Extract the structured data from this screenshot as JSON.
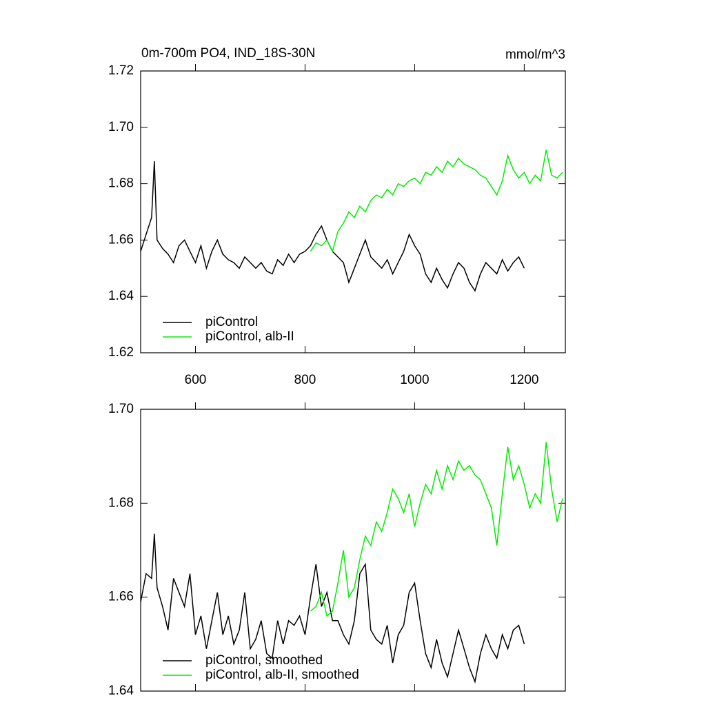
{
  "chart_data": [
    {
      "type": "line",
      "title": "0m-700m PO4, IND_18S-30N",
      "units": "mmol/m^3",
      "xlim": [
        500,
        1275
      ],
      "xticks": [
        600,
        800,
        1000,
        1200
      ],
      "xtick_labels": true,
      "ylim": [
        1.62,
        1.72
      ],
      "yticks": [
        1.62,
        1.64,
        1.66,
        1.68,
        {
          "value": 1.7,
          "label": "1.70"
        },
        1.72
      ],
      "legend": "lower left",
      "series": [
        {
          "name": "piControl",
          "color": "#000000",
          "x": [
            500,
            510,
            520,
            525,
            530,
            540,
            550,
            560,
            570,
            580,
            590,
            600,
            610,
            620,
            630,
            640,
            650,
            660,
            670,
            680,
            690,
            700,
            710,
            720,
            730,
            740,
            750,
            760,
            770,
            780,
            790,
            800,
            810,
            820,
            830,
            840,
            850,
            860,
            870,
            880,
            890,
            900,
            910,
            920,
            930,
            940,
            950,
            960,
            970,
            980,
            990,
            1000,
            1010,
            1020,
            1030,
            1040,
            1050,
            1060,
            1070,
            1080,
            1090,
            1100,
            1110,
            1120,
            1130,
            1140,
            1150,
            1160,
            1170,
            1180,
            1190,
            1200
          ],
          "values": [
            1.656,
            1.662,
            1.668,
            1.688,
            1.66,
            1.657,
            1.655,
            1.652,
            1.658,
            1.66,
            1.656,
            1.652,
            1.658,
            1.65,
            1.656,
            1.66,
            1.655,
            1.653,
            1.652,
            1.65,
            1.654,
            1.652,
            1.65,
            1.652,
            1.649,
            1.648,
            1.653,
            1.651,
            1.655,
            1.652,
            1.655,
            1.656,
            1.658,
            1.662,
            1.665,
            1.66,
            1.656,
            1.654,
            1.652,
            1.645,
            1.65,
            1.655,
            1.66,
            1.654,
            1.652,
            1.65,
            1.653,
            1.648,
            1.652,
            1.656,
            1.662,
            1.658,
            1.655,
            1.648,
            1.645,
            1.65,
            1.646,
            1.643,
            1.648,
            1.652,
            1.65,
            1.645,
            1.642,
            1.648,
            1.652,
            1.65,
            1.648,
            1.653,
            1.649,
            1.652,
            1.654,
            1.65
          ]
        },
        {
          "name": "piControl, alb-II",
          "color": "#00ee00",
          "x": [
            810,
            820,
            830,
            840,
            850,
            860,
            870,
            880,
            890,
            900,
            910,
            920,
            930,
            940,
            950,
            960,
            970,
            980,
            990,
            1000,
            1010,
            1020,
            1030,
            1040,
            1050,
            1060,
            1070,
            1080,
            1090,
            1100,
            1110,
            1120,
            1130,
            1140,
            1150,
            1160,
            1170,
            1180,
            1190,
            1200,
            1210,
            1220,
            1230,
            1240,
            1250,
            1260,
            1270
          ],
          "values": [
            1.656,
            1.659,
            1.658,
            1.66,
            1.656,
            1.663,
            1.666,
            1.67,
            1.668,
            1.672,
            1.67,
            1.674,
            1.676,
            1.675,
            1.678,
            1.676,
            1.68,
            1.679,
            1.681,
            1.682,
            1.68,
            1.684,
            1.683,
            1.686,
            1.684,
            1.688,
            1.686,
            1.689,
            1.687,
            1.686,
            1.685,
            1.683,
            1.682,
            1.679,
            1.676,
            1.681,
            1.69,
            1.685,
            1.682,
            1.684,
            1.68,
            1.683,
            1.681,
            1.692,
            1.683,
            1.682,
            1.684
          ]
        }
      ]
    },
    {
      "type": "line",
      "xlim": [
        500,
        1275
      ],
      "xticks": [
        600,
        800,
        1000,
        1200
      ],
      "xtick_labels": false,
      "ylim": [
        1.64,
        1.7
      ],
      "yticks": [
        1.64,
        1.66,
        1.68,
        {
          "value": 1.7,
          "label": "1.70"
        }
      ],
      "legend": "lower left",
      "series": [
        {
          "name": "piControl, smoothed",
          "color": "#000000",
          "x": [
            500,
            510,
            520,
            525,
            530,
            540,
            550,
            560,
            570,
            580,
            590,
            600,
            610,
            620,
            630,
            640,
            650,
            660,
            670,
            680,
            690,
            700,
            710,
            720,
            730,
            740,
            750,
            760,
            770,
            780,
            790,
            800,
            810,
            820,
            830,
            840,
            850,
            860,
            870,
            880,
            890,
            900,
            910,
            920,
            930,
            940,
            950,
            960,
            970,
            980,
            990,
            1000,
            1010,
            1020,
            1030,
            1040,
            1050,
            1060,
            1070,
            1080,
            1090,
            1100,
            1110,
            1120,
            1130,
            1140,
            1150,
            1160,
            1170,
            1180,
            1190,
            1200
          ],
          "values": [
            1.659,
            1.665,
            1.664,
            1.6735,
            1.662,
            1.658,
            1.653,
            1.664,
            1.661,
            1.658,
            1.665,
            1.652,
            1.656,
            1.649,
            1.655,
            1.661,
            1.652,
            1.656,
            1.65,
            1.653,
            1.661,
            1.649,
            1.651,
            1.655,
            1.648,
            1.647,
            1.655,
            1.65,
            1.655,
            1.654,
            1.656,
            1.652,
            1.66,
            1.667,
            1.658,
            1.661,
            1.655,
            1.655,
            1.652,
            1.65,
            1.655,
            1.665,
            1.667,
            1.653,
            1.651,
            1.65,
            1.654,
            1.646,
            1.652,
            1.654,
            1.661,
            1.663,
            1.655,
            1.648,
            1.645,
            1.651,
            1.646,
            1.643,
            1.648,
            1.653,
            1.649,
            1.645,
            1.642,
            1.648,
            1.652,
            1.649,
            1.647,
            1.652,
            1.649,
            1.653,
            1.654,
            1.65
          ]
        },
        {
          "name": "piControl, alb-II, smoothed",
          "color": "#00ee00",
          "x": [
            810,
            820,
            830,
            840,
            850,
            860,
            870,
            880,
            890,
            900,
            910,
            920,
            930,
            940,
            950,
            960,
            970,
            980,
            990,
            1000,
            1010,
            1020,
            1030,
            1040,
            1050,
            1060,
            1070,
            1080,
            1090,
            1100,
            1110,
            1120,
            1130,
            1140,
            1150,
            1160,
            1170,
            1180,
            1190,
            1200,
            1210,
            1220,
            1230,
            1240,
            1250,
            1260,
            1270
          ],
          "values": [
            1.657,
            1.658,
            1.661,
            1.656,
            1.657,
            1.663,
            1.67,
            1.66,
            1.662,
            1.668,
            1.673,
            1.671,
            1.676,
            1.674,
            1.678,
            1.683,
            1.681,
            1.678,
            1.682,
            1.675,
            1.68,
            1.684,
            1.682,
            1.687,
            1.683,
            1.688,
            1.685,
            1.689,
            1.687,
            1.688,
            1.686,
            1.685,
            1.682,
            1.679,
            1.671,
            1.682,
            1.692,
            1.685,
            1.688,
            1.684,
            1.679,
            1.682,
            1.68,
            1.693,
            1.683,
            1.676,
            1.681
          ]
        }
      ]
    }
  ]
}
